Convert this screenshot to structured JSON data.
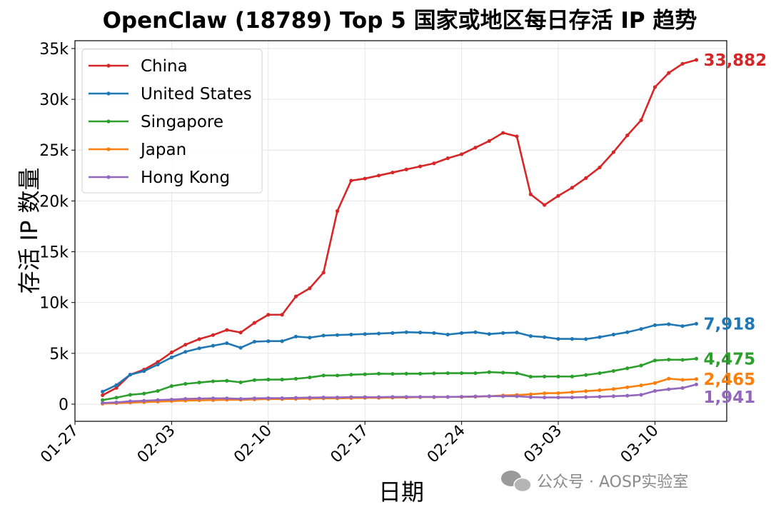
{
  "chart_data": {
    "type": "line",
    "title": "OpenClaw (18789) Top 5 国家或地区每日存活 IP 趋势",
    "xlabel": "日期",
    "ylabel": "存活 IP 数量",
    "x_ticks": [
      "01-27",
      "02-03",
      "02-10",
      "02-17",
      "02-24",
      "03-03",
      "03-10"
    ],
    "y_ticks": [
      0,
      5000,
      10000,
      15000,
      20000,
      25000,
      30000,
      35000
    ],
    "y_tick_labels": [
      "0",
      "5k",
      "10k",
      "15k",
      "20k",
      "25k",
      "30k",
      "35k"
    ],
    "xlim": [
      "01-27",
      "03-15"
    ],
    "ylim": [
      -1690,
      35770
    ],
    "grid": true,
    "legend_placement": "top-left",
    "x": [
      "01-29",
      "01-30",
      "01-31",
      "02-01",
      "02-02",
      "02-03",
      "02-04",
      "02-05",
      "02-06",
      "02-07",
      "02-08",
      "02-09",
      "02-10",
      "02-11",
      "02-12",
      "02-13",
      "02-14",
      "02-15",
      "02-16",
      "02-17",
      "02-18",
      "02-19",
      "02-20",
      "02-21",
      "02-22",
      "02-23",
      "02-24",
      "02-25",
      "02-26",
      "02-27",
      "02-28",
      "03-01",
      "03-02",
      "03-03",
      "03-04",
      "03-05",
      "03-06",
      "03-07",
      "03-08",
      "03-09",
      "03-10",
      "03-11",
      "03-12",
      "03-13"
    ],
    "series": [
      {
        "name": "China",
        "color": "#d62728",
        "end_label": "33,882",
        "values": [
          880,
          1600,
          2900,
          3400,
          4150,
          5100,
          5850,
          6400,
          6800,
          7300,
          7050,
          8000,
          8800,
          8800,
          10600,
          11400,
          12950,
          19000,
          22000,
          22200,
          22500,
          22800,
          23100,
          23400,
          23700,
          24200,
          24600,
          25250,
          25900,
          26700,
          26350,
          20650,
          19600,
          20500,
          21300,
          22250,
          23300,
          24800,
          26450,
          27950,
          31200,
          32600,
          33500,
          33882
        ]
      },
      {
        "name": "United States",
        "color": "#1f77b4",
        "end_label": "7,918",
        "values": [
          1230,
          1870,
          2900,
          3250,
          3900,
          4600,
          5150,
          5500,
          5750,
          6000,
          5550,
          6150,
          6200,
          6200,
          6650,
          6550,
          6750,
          6800,
          6850,
          6900,
          6950,
          7000,
          7080,
          7050,
          7000,
          6850,
          7000,
          7080,
          6900,
          7000,
          7050,
          6700,
          6600,
          6420,
          6420,
          6400,
          6600,
          6850,
          7080,
          7400,
          7770,
          7870,
          7680,
          7918
        ]
      },
      {
        "name": "Singapore",
        "color": "#2ca02c",
        "end_label": "4,475",
        "values": [
          400,
          640,
          920,
          1040,
          1300,
          1780,
          2000,
          2130,
          2250,
          2300,
          2150,
          2370,
          2420,
          2420,
          2500,
          2630,
          2820,
          2820,
          2900,
          2940,
          3000,
          2980,
          3000,
          3000,
          3030,
          3050,
          3050,
          3050,
          3150,
          3100,
          3050,
          2700,
          2720,
          2720,
          2720,
          2870,
          3050,
          3270,
          3530,
          3800,
          4300,
          4380,
          4360,
          4475
        ]
      },
      {
        "name": "Japan",
        "color": "#ff7f0e",
        "end_label": "2,465",
        "values": [
          50,
          100,
          150,
          200,
          250,
          300,
          350,
          380,
          400,
          430,
          430,
          470,
          500,
          500,
          520,
          550,
          570,
          570,
          600,
          620,
          620,
          640,
          660,
          690,
          690,
          710,
          710,
          730,
          780,
          850,
          900,
          970,
          1070,
          1090,
          1180,
          1280,
          1370,
          1490,
          1660,
          1850,
          2080,
          2510,
          2390,
          2465
        ]
      },
      {
        "name": "Hong Kong",
        "color": "#9467bd",
        "end_label": "1,941",
        "values": [
          120,
          170,
          280,
          330,
          400,
          450,
          520,
          550,
          570,
          570,
          520,
          570,
          590,
          590,
          620,
          640,
          660,
          660,
          690,
          690,
          690,
          710,
          710,
          710,
          710,
          710,
          730,
          760,
          780,
          780,
          780,
          690,
          660,
          660,
          660,
          690,
          730,
          780,
          830,
          920,
          1300,
          1470,
          1590,
          1941
        ]
      }
    ]
  },
  "watermark": {
    "icon": "wechat-icon",
    "text": "公众号 · AOSP实验室"
  }
}
